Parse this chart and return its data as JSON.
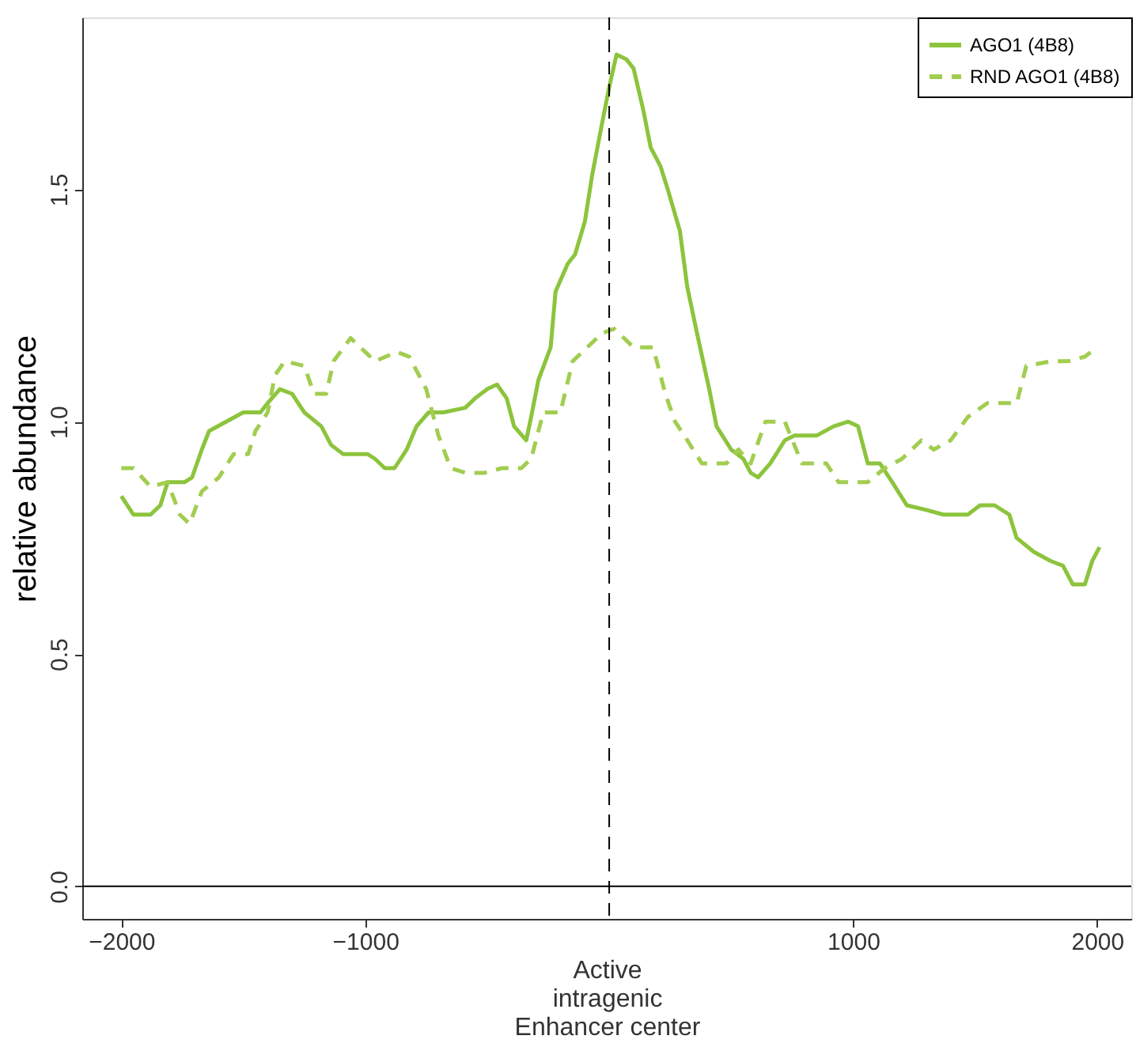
{
  "chart_data": {
    "type": "line",
    "xlabel": "Active\nintragenic\nEnhancer center",
    "ylabel": "relative abundance",
    "xlim": [
      -2160,
      2140
    ],
    "ylim": [
      -0.07,
      1.87
    ],
    "xticks": [
      {
        "value": -2000,
        "label": "−2000"
      },
      {
        "value": -1000,
        "label": "−1000"
      },
      {
        "value": 1000,
        "label": "1000"
      },
      {
        "value": 2000,
        "label": "2000"
      }
    ],
    "yticks": [
      {
        "value": 0,
        "label": "0.0"
      },
      {
        "value": 0.5,
        "label": "0.5"
      },
      {
        "value": 1,
        "label": "1.0"
      },
      {
        "value": 1.5,
        "label": "1.5"
      }
    ],
    "grid": false,
    "legend": "top right",
    "marker": "none",
    "ref_lines": [
      {
        "axis": "y",
        "value": 0,
        "color": "#000000",
        "line_style": "solid"
      },
      {
        "axis": "x",
        "value": 0,
        "color": "#000000",
        "line_style": "dashed"
      }
    ],
    "series": [
      {
        "name": "AGO1 (4B8)",
        "color": "#8cc43c",
        "line_style": "solid",
        "x": [
          -2000,
          -1950,
          -1880,
          -1840,
          -1810,
          -1740,
          -1710,
          -1670,
          -1640,
          -1570,
          -1500,
          -1430,
          -1400,
          -1350,
          -1300,
          -1250,
          -1180,
          -1140,
          -1090,
          -990,
          -960,
          -920,
          -880,
          -830,
          -790,
          -740,
          -680,
          -590,
          -550,
          -500,
          -460,
          -420,
          -390,
          -340,
          -320,
          -290,
          -240,
          -220,
          -170,
          -140,
          -100,
          -70,
          -30,
          0,
          30,
          70,
          100,
          140,
          170,
          210,
          240,
          290,
          320,
          360,
          410,
          440,
          500,
          550,
          580,
          610,
          660,
          720,
          760,
          850,
          920,
          980,
          1020,
          1060,
          1110,
          1160,
          1220,
          1300,
          1370,
          1470,
          1520,
          1580,
          1640,
          1670,
          1740,
          1810,
          1860,
          1900,
          1950,
          1980,
          2010
        ],
        "values": [
          0.84,
          0.8,
          0.8,
          0.82,
          0.87,
          0.87,
          0.88,
          0.94,
          0.98,
          1.0,
          1.02,
          1.02,
          1.04,
          1.07,
          1.06,
          1.02,
          0.99,
          0.95,
          0.93,
          0.93,
          0.92,
          0.9,
          0.9,
          0.94,
          0.99,
          1.02,
          1.02,
          1.03,
          1.05,
          1.07,
          1.08,
          1.05,
          0.99,
          0.96,
          1.01,
          1.09,
          1.16,
          1.28,
          1.34,
          1.36,
          1.43,
          1.53,
          1.64,
          1.72,
          1.79,
          1.78,
          1.76,
          1.67,
          1.59,
          1.55,
          1.5,
          1.41,
          1.29,
          1.19,
          1.07,
          0.99,
          0.94,
          0.92,
          0.89,
          0.88,
          0.91,
          0.96,
          0.97,
          0.97,
          0.99,
          1.0,
          0.99,
          0.91,
          0.91,
          0.87,
          0.82,
          0.81,
          0.8,
          0.8,
          0.82,
          0.82,
          0.8,
          0.75,
          0.72,
          0.7,
          0.69,
          0.65,
          0.65,
          0.7,
          0.73
        ]
      },
      {
        "name": "RND AGO1 (4B8)",
        "color": "#a2cd50",
        "line_style": "dashed",
        "x": [
          -2000,
          -1950,
          -1880,
          -1810,
          -1760,
          -1720,
          -1670,
          -1600,
          -1540,
          -1480,
          -1450,
          -1400,
          -1370,
          -1330,
          -1250,
          -1210,
          -1160,
          -1130,
          -1060,
          -1000,
          -960,
          -870,
          -820,
          -750,
          -700,
          -650,
          -590,
          -510,
          -440,
          -360,
          -320,
          -270,
          -200,
          -150,
          -90,
          -30,
          20,
          100,
          180,
          230,
          270,
          320,
          380,
          480,
          530,
          580,
          640,
          720,
          790,
          890,
          940,
          1060,
          1130,
          1200,
          1280,
          1330,
          1400,
          1470,
          1550,
          1670,
          1710,
          1810,
          1880,
          1950,
          2000
        ],
        "values": [
          0.9,
          0.9,
          0.86,
          0.87,
          0.8,
          0.78,
          0.85,
          0.88,
          0.93,
          0.93,
          0.98,
          1.02,
          1.1,
          1.13,
          1.12,
          1.06,
          1.06,
          1.13,
          1.18,
          1.15,
          1.13,
          1.15,
          1.14,
          1.07,
          0.97,
          0.9,
          0.89,
          0.89,
          0.9,
          0.9,
          0.92,
          1.02,
          1.02,
          1.13,
          1.16,
          1.19,
          1.2,
          1.16,
          1.16,
          1.06,
          1.0,
          0.96,
          0.91,
          0.91,
          0.94,
          0.91,
          1.0,
          1.0,
          0.91,
          0.91,
          0.87,
          0.87,
          0.9,
          0.92,
          0.96,
          0.94,
          0.96,
          1.01,
          1.04,
          1.04,
          1.12,
          1.13,
          1.13,
          1.14,
          1.16
        ]
      }
    ]
  }
}
